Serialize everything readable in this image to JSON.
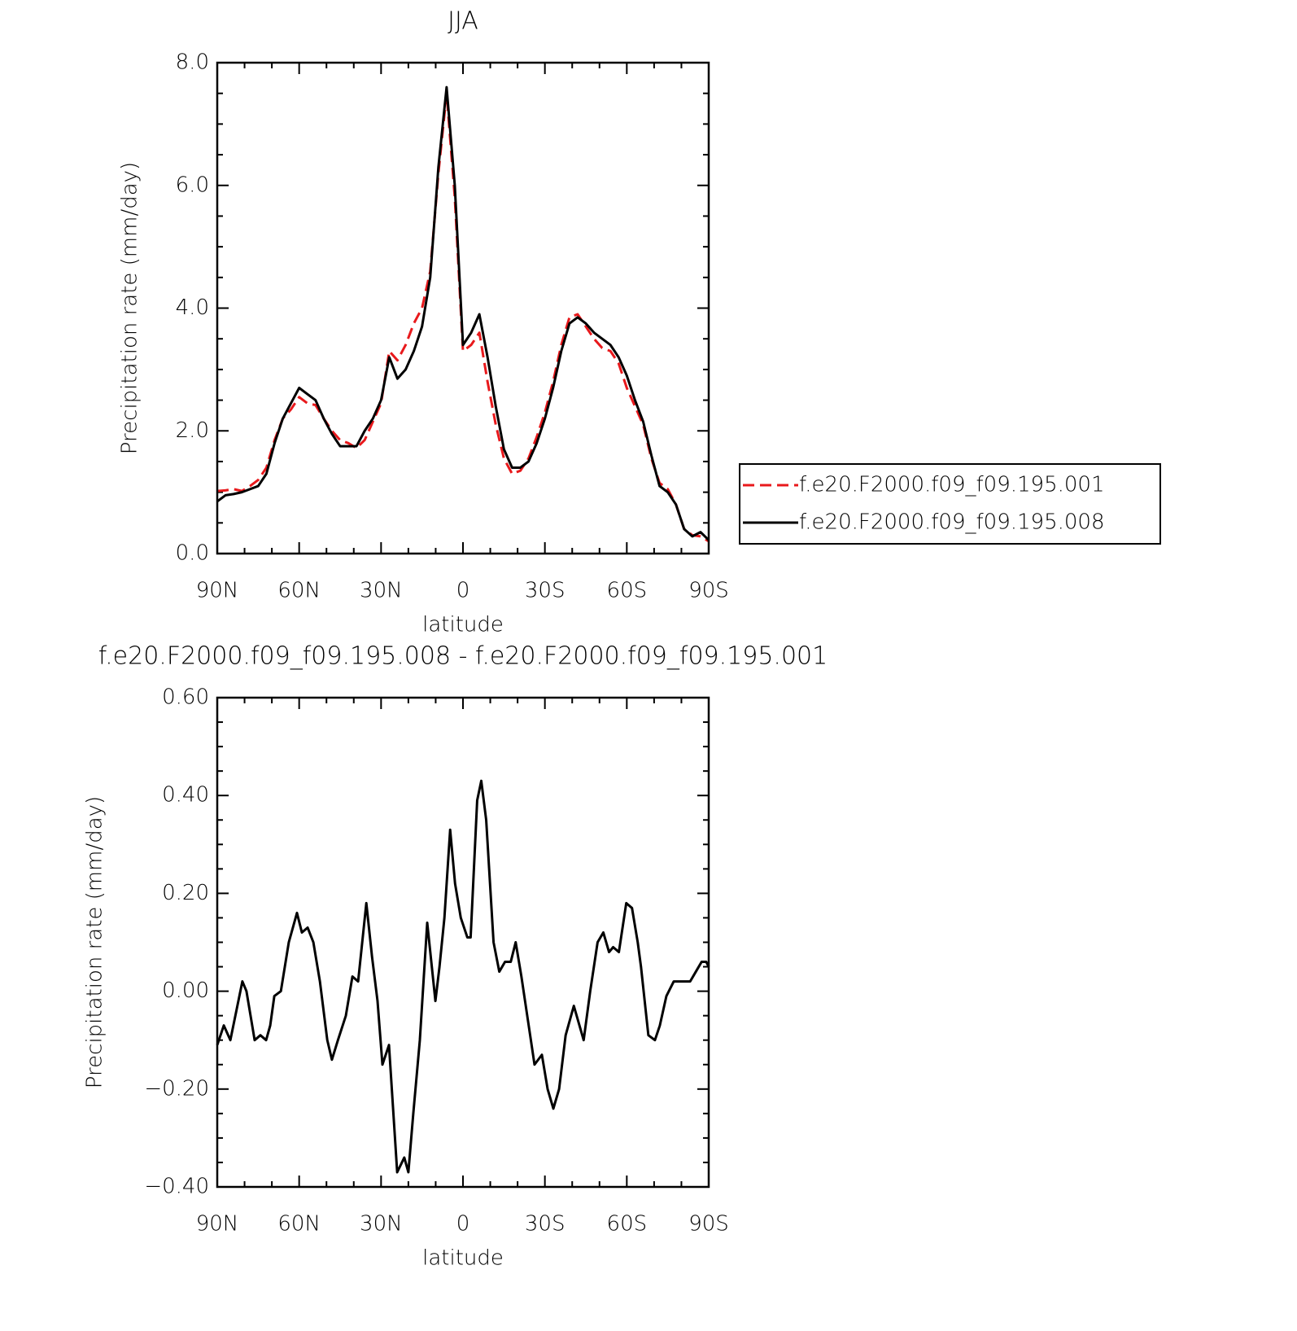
{
  "chart_data": [
    {
      "type": "line",
      "title": "JJA",
      "xlabel": "latitude",
      "ylabel": "Precipitation rate (mm/day)",
      "x": [
        90,
        87,
        84,
        81,
        78,
        75,
        72,
        69,
        66,
        63,
        60,
        57,
        54,
        51,
        48,
        45,
        42,
        39,
        36,
        33,
        30,
        27,
        24,
        21,
        18,
        15,
        12,
        9,
        6,
        3,
        0,
        -3,
        -6,
        -9,
        -12,
        -15,
        -18,
        -21,
        -24,
        -27,
        -30,
        -33,
        -36,
        -39,
        -42,
        -45,
        -48,
        -51,
        -54,
        -57,
        -60,
        -63,
        -66,
        -69,
        -72,
        -75,
        -78,
        -81,
        -84,
        -87,
        -90
      ],
      "series": [
        {
          "name": "f.e20.F2000.f09_f09.195.001",
          "color": "#e8191c",
          "line_style": "dashed",
          "values": [
            1.02,
            1.03,
            1.05,
            1.02,
            1.1,
            1.2,
            1.4,
            1.85,
            2.2,
            2.35,
            2.55,
            2.45,
            2.42,
            2.2,
            2.0,
            1.85,
            1.8,
            1.72,
            1.85,
            2.15,
            2.45,
            3.3,
            3.15,
            3.4,
            3.75,
            4.0,
            4.6,
            6.2,
            7.5,
            5.8,
            3.3,
            3.4,
            3.6,
            2.8,
            2.1,
            1.55,
            1.3,
            1.35,
            1.55,
            1.9,
            2.3,
            2.8,
            3.4,
            3.85,
            3.9,
            3.7,
            3.5,
            3.35,
            3.3,
            3.1,
            2.7,
            2.4,
            2.1,
            1.55,
            1.15,
            1.05,
            0.8,
            0.4,
            0.3,
            0.28,
            0.2
          ]
        },
        {
          "name": "f.e20.F2000.f09_f09.195.008",
          "color": "#000000",
          "line_style": "solid",
          "values": [
            0.85,
            0.95,
            0.97,
            1.0,
            1.05,
            1.1,
            1.3,
            1.8,
            2.2,
            2.45,
            2.7,
            2.6,
            2.5,
            2.2,
            1.95,
            1.75,
            1.75,
            1.75,
            2.0,
            2.2,
            2.5,
            3.2,
            2.85,
            3.0,
            3.3,
            3.7,
            4.5,
            6.3,
            7.6,
            6.0,
            3.4,
            3.6,
            3.9,
            3.2,
            2.4,
            1.7,
            1.4,
            1.4,
            1.5,
            1.8,
            2.2,
            2.7,
            3.3,
            3.75,
            3.85,
            3.75,
            3.6,
            3.5,
            3.4,
            3.2,
            2.9,
            2.5,
            2.15,
            1.6,
            1.1,
            1.0,
            0.8,
            0.4,
            0.28,
            0.35,
            0.22
          ]
        }
      ],
      "xlim": [
        90,
        -90
      ],
      "xticks": [
        {
          "value": 90,
          "label": "90N"
        },
        {
          "value": 60,
          "label": "60N"
        },
        {
          "value": 30,
          "label": "30N"
        },
        0,
        {
          "value": -30,
          "label": "30S"
        },
        {
          "value": -60,
          "label": "60S"
        },
        {
          "value": -90,
          "label": "90S"
        }
      ],
      "ylim": [
        0,
        8
      ],
      "yticks": [
        {
          "value": 0,
          "label": "0.0"
        },
        {
          "value": 2,
          "label": "2.0"
        },
        {
          "value": 4,
          "label": "4.0"
        },
        {
          "value": 6,
          "label": "6.0"
        },
        {
          "value": 8,
          "label": "8.0"
        }
      ],
      "legend": "right"
    },
    {
      "type": "line",
      "title": "f.e20.F2000.f09_f09.195.008 - f.e20.F2000.f09_f09.195.001",
      "xlabel": "latitude",
      "ylabel": "Precipitation rate (mm/day)",
      "x": [
        90,
        87.6,
        85.2,
        83,
        80.8,
        79.3,
        76.3,
        74.2,
        72.1,
        70.6,
        69.1,
        66.7,
        63.8,
        60.8,
        59,
        56.9,
        54.8,
        52.4,
        49.7,
        48,
        45.8,
        42.9,
        40.5,
        38.4,
        35.4,
        33.3,
        31.3,
        29.5,
        27.1,
        24.1,
        21.5,
        20,
        18.2,
        15.8,
        13.1,
        10.1,
        8.6,
        6.8,
        4.7,
        2.9,
        0.8,
        -1.6,
        -2.8,
        -5.2,
        -6.7,
        -8.5,
        -11.2,
        -13.3,
        -15.4,
        -17.5,
        -19.3,
        -21.4,
        -23.8,
        -26.2,
        -28.9,
        -31,
        -33.1,
        -35.2,
        -37.6,
        -40.6,
        -44.2,
        -46.6,
        -49.3,
        -51.4,
        -53.5,
        -55,
        -57.1,
        -59.8,
        -61.9,
        -64,
        -65.2,
        -67.9,
        -70.3,
        -72.1,
        -74.5,
        -77.2,
        -79.9,
        -83.2,
        -85.3,
        -87.4,
        -89.1,
        -90
      ],
      "series": [
        {
          "color": "#000000",
          "line_style": "solid",
          "values": [
            -0.11,
            -0.07,
            -0.1,
            -0.04,
            0.02,
            0.0,
            -0.1,
            -0.09,
            -0.1,
            -0.07,
            -0.01,
            0.0,
            0.1,
            0.16,
            0.12,
            0.13,
            0.1,
            0.02,
            -0.1,
            -0.14,
            -0.1,
            -0.05,
            0.03,
            0.02,
            0.18,
            0.07,
            -0.02,
            -0.15,
            -0.11,
            -0.37,
            -0.34,
            -0.37,
            -0.25,
            -0.1,
            0.14,
            -0.02,
            0.05,
            0.15,
            0.33,
            0.22,
            0.15,
            0.11,
            0.11,
            0.39,
            0.43,
            0.35,
            0.1,
            0.04,
            0.06,
            0.06,
            0.1,
            0.03,
            -0.06,
            -0.15,
            -0.13,
            -0.2,
            -0.24,
            -0.2,
            -0.09,
            -0.03,
            -0.1,
            0.0,
            0.1,
            0.12,
            0.08,
            0.09,
            0.08,
            0.18,
            0.17,
            0.1,
            0.05,
            -0.09,
            -0.1,
            -0.07,
            -0.01,
            0.02,
            0.02,
            0.02,
            0.04,
            0.06,
            0.06,
            0.05
          ]
        }
      ],
      "xlim": [
        90,
        -90
      ],
      "xticks": [
        {
          "value": 90,
          "label": "90N"
        },
        {
          "value": 60,
          "label": "60N"
        },
        {
          "value": 30,
          "label": "30N"
        },
        0,
        {
          "value": -30,
          "label": "30S"
        },
        {
          "value": -60,
          "label": "60S"
        },
        {
          "value": -90,
          "label": "90S"
        }
      ],
      "ylim": [
        -0.4,
        0.6
      ],
      "yticks": [
        {
          "value": -0.4,
          "label": "−0.40"
        },
        {
          "value": -0.2,
          "label": "−0.20"
        },
        {
          "value": 0,
          "label": "0.00"
        },
        {
          "value": 0.2,
          "label": "0.20"
        },
        {
          "value": 0.4,
          "label": "0.40"
        },
        {
          "value": 0.6,
          "label": "0.60"
        }
      ]
    }
  ]
}
